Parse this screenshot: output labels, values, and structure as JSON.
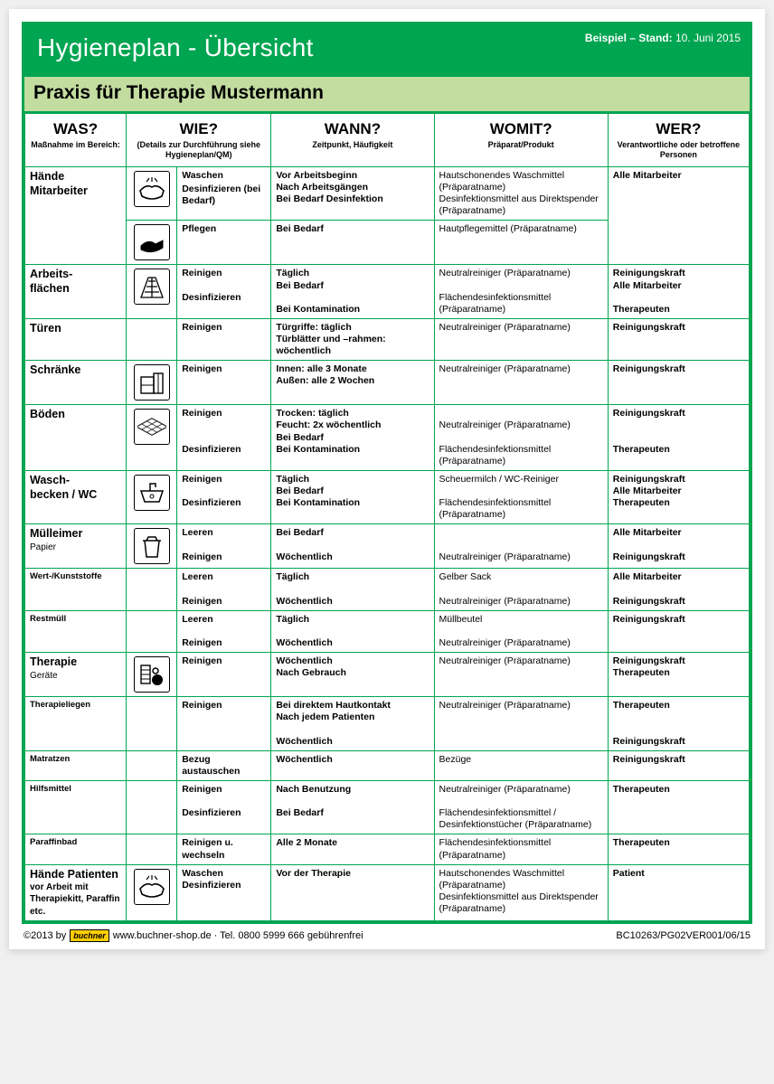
{
  "colors": {
    "green": "#00a551",
    "subtitle_bg": "#c3dca0",
    "brand_yellow": "#ffce00"
  },
  "header": {
    "title": "Hygieneplan - Übersicht",
    "stand_label": "Beispiel – Stand: ",
    "stand_date": "10. Juni 2015"
  },
  "subtitle": "Praxis für Therapie Mustermann",
  "columns": {
    "was_q": "WAS?",
    "was_s": "Maßnahme im Bereich:",
    "wie_q": "WIE?",
    "wie_s": "(Details zur Durchführung siehe Hygieneplan/QM)",
    "wann_q": "WANN?",
    "wann_s": "Zeitpunkt, Häufigkeit",
    "womit_q": "WOMIT?",
    "womit_s": "Präparat/Produkt",
    "wer_q": "WER?",
    "wer_s": "Verantwortliche oder betroffene Personen"
  },
  "rows": {
    "haende_m": {
      "title": "Hände Mitarbeiter",
      "wie1a": "Waschen",
      "wie1b": "Desinfizieren (bei Bedarf)",
      "wann1": "Vor Arbeitsbeginn\nNach Arbeitsgängen\nBei Bedarf Desinfektion",
      "womit1": "Hautschonendes Waschmittel (Präparatname)\nDesinfektionsmittel aus Direktspender (Präparatname)",
      "wer1": "Alle Mitarbeiter",
      "wie2": "Pflegen",
      "wann2": "Bei Bedarf",
      "womit2": "Hautpflegemittel (Präparatname)"
    },
    "arbeits": {
      "title": "Arbeits-\nflächen",
      "wie_a": "Reinigen",
      "wie_b": "Desinfizieren",
      "wann_a": "Täglich\nBei Bedarf",
      "wann_b": "Bei Kontamination",
      "womit_a": "Neutralreiniger (Präparatname)",
      "womit_b": "Flächendesinfektionsmittel (Präparatname)",
      "wer_a": "Reinigungskraft\nAlle Mitarbeiter",
      "wer_b": "Therapeuten"
    },
    "tueren": {
      "title": "Türen",
      "wie": "Reinigen",
      "wann": "Türgriffe: täglich\nTürblätter und –rahmen: wöchentlich",
      "womit": "Neutralreiniger (Präparatname)",
      "wer": "Reinigungskraft"
    },
    "schraenke": {
      "title": "Schränke",
      "wie": "Reinigen",
      "wann": "Innen: alle 3 Monate\nAußen: alle 2 Wochen",
      "womit": "Neutralreiniger (Präparatname)",
      "wer": "Reinigungskraft"
    },
    "boeden": {
      "title": "Böden",
      "wie_a": "Reinigen",
      "wie_b": "Desinfizieren",
      "wann_a": "Trocken: täglich\nFeucht: 2x wöchentlich\nBei Bedarf",
      "wann_b": "Bei Kontamination",
      "womit_a": "Neutralreiniger (Präparatname)",
      "womit_b": "Flächendesinfektionsmittel (Präparatname)",
      "wer_a": "Reinigungskraft",
      "wer_b": "Therapeuten"
    },
    "wasch": {
      "title": "Wasch-\nbecken / WC",
      "wie_a": "Reinigen",
      "wie_b": "Desinfizieren",
      "wann_a": "Täglich\nBei Bedarf",
      "wann_b": "Bei Kontamination",
      "womit_a": "Scheuermilch / WC-Reiniger",
      "womit_b": "Flächendesinfektionsmittel (Präparatname)",
      "wer_a": "Reinigungskraft\nAlle Mitarbeiter",
      "wer_b": "Therapeuten"
    },
    "muell": {
      "title": "Mülleimer",
      "title_sub": "Papier",
      "wie_a": "Leeren",
      "wie_b": "Reinigen",
      "wann_a": "Bei Bedarf",
      "wann_b": "Wöchentlich",
      "womit_a": "",
      "womit_b": "Neutralreiniger (Präparatname)",
      "wer_a": "Alle Mitarbeiter",
      "wer_b": "Reinigungskraft"
    },
    "wert": {
      "title": "Wert-/Kunststoffe",
      "wie_a": "Leeren",
      "wie_b": "Reinigen",
      "wann_a": "Täglich",
      "wann_b": "Wöchentlich",
      "womit_a": "Gelber Sack",
      "womit_b": "Neutralreiniger (Präparatname)",
      "wer_a": "Alle Mitarbeiter",
      "wer_b": "Reinigungskraft"
    },
    "rest": {
      "title": "Restmüll",
      "wie_a": "Leeren",
      "wie_b": "Reinigen",
      "wann_a": "Täglich",
      "wann_b": "Wöchentlich",
      "womit_a": "Müllbeutel",
      "womit_b": "Neutralreiniger (Präparatname)",
      "wer": "Reinigungskraft"
    },
    "therapie": {
      "title": "Therapie",
      "title_sub": "Geräte",
      "wie": "Reinigen",
      "wann": "Wöchentlich\nNach Gebrauch",
      "womit": "Neutralreiniger (Präparatname)",
      "wer": "Reinigungskraft\nTherapeuten"
    },
    "liegen": {
      "title": "Therapieliegen",
      "wie": "Reinigen",
      "wann": "Bei direktem Hautkontakt\nNach jedem Patienten\n\nWöchentlich",
      "womit": "Neutralreiniger (Präparatname)",
      "wer_a": "Therapeuten",
      "wer_b": "Reinigungskraft"
    },
    "matratzen": {
      "title": "Matratzen",
      "wie": "Bezug austauschen",
      "wann": "Wöchentlich",
      "womit": "Bezüge",
      "wer": "Reinigungskraft"
    },
    "hilfs": {
      "title": "Hilfsmittel",
      "wie_a": "Reinigen",
      "wie_b": "Desinfizieren",
      "wann_a": "Nach Benutzung",
      "wann_b": "Bei Bedarf",
      "womit_a": "Neutralreiniger (Präparatname)",
      "womit_b": "Flächendesinfektionsmittel / Desinfektionstücher (Präparatname)",
      "wer": "Therapeuten"
    },
    "paraffin": {
      "title": "Paraffinbad",
      "wie": "Reinigen u. wechseln",
      "wann": "Alle 2 Monate",
      "womit": "Flächendesinfektionsmittel (Präparatname)",
      "wer": "Therapeuten"
    },
    "haende_p": {
      "title": "Hände Patienten",
      "title_sub": "vor Arbeit mit Therapiekitt, Paraffin etc.",
      "wie": "Waschen\nDesinfizieren",
      "wann": "Vor der Therapie",
      "womit": "Hautschonendes Waschmittel (Präparatname)\nDesinfektionsmittel aus Direktspender (Präparatname)",
      "wer": "Patient"
    }
  },
  "footer": {
    "copy": "©2013 by ",
    "brand": "buchner",
    "text": " www.buchner-shop.de · Tel. 0800 5999 666 gebührenfrei",
    "code": "BC10263/PG02VER001/06/15"
  }
}
